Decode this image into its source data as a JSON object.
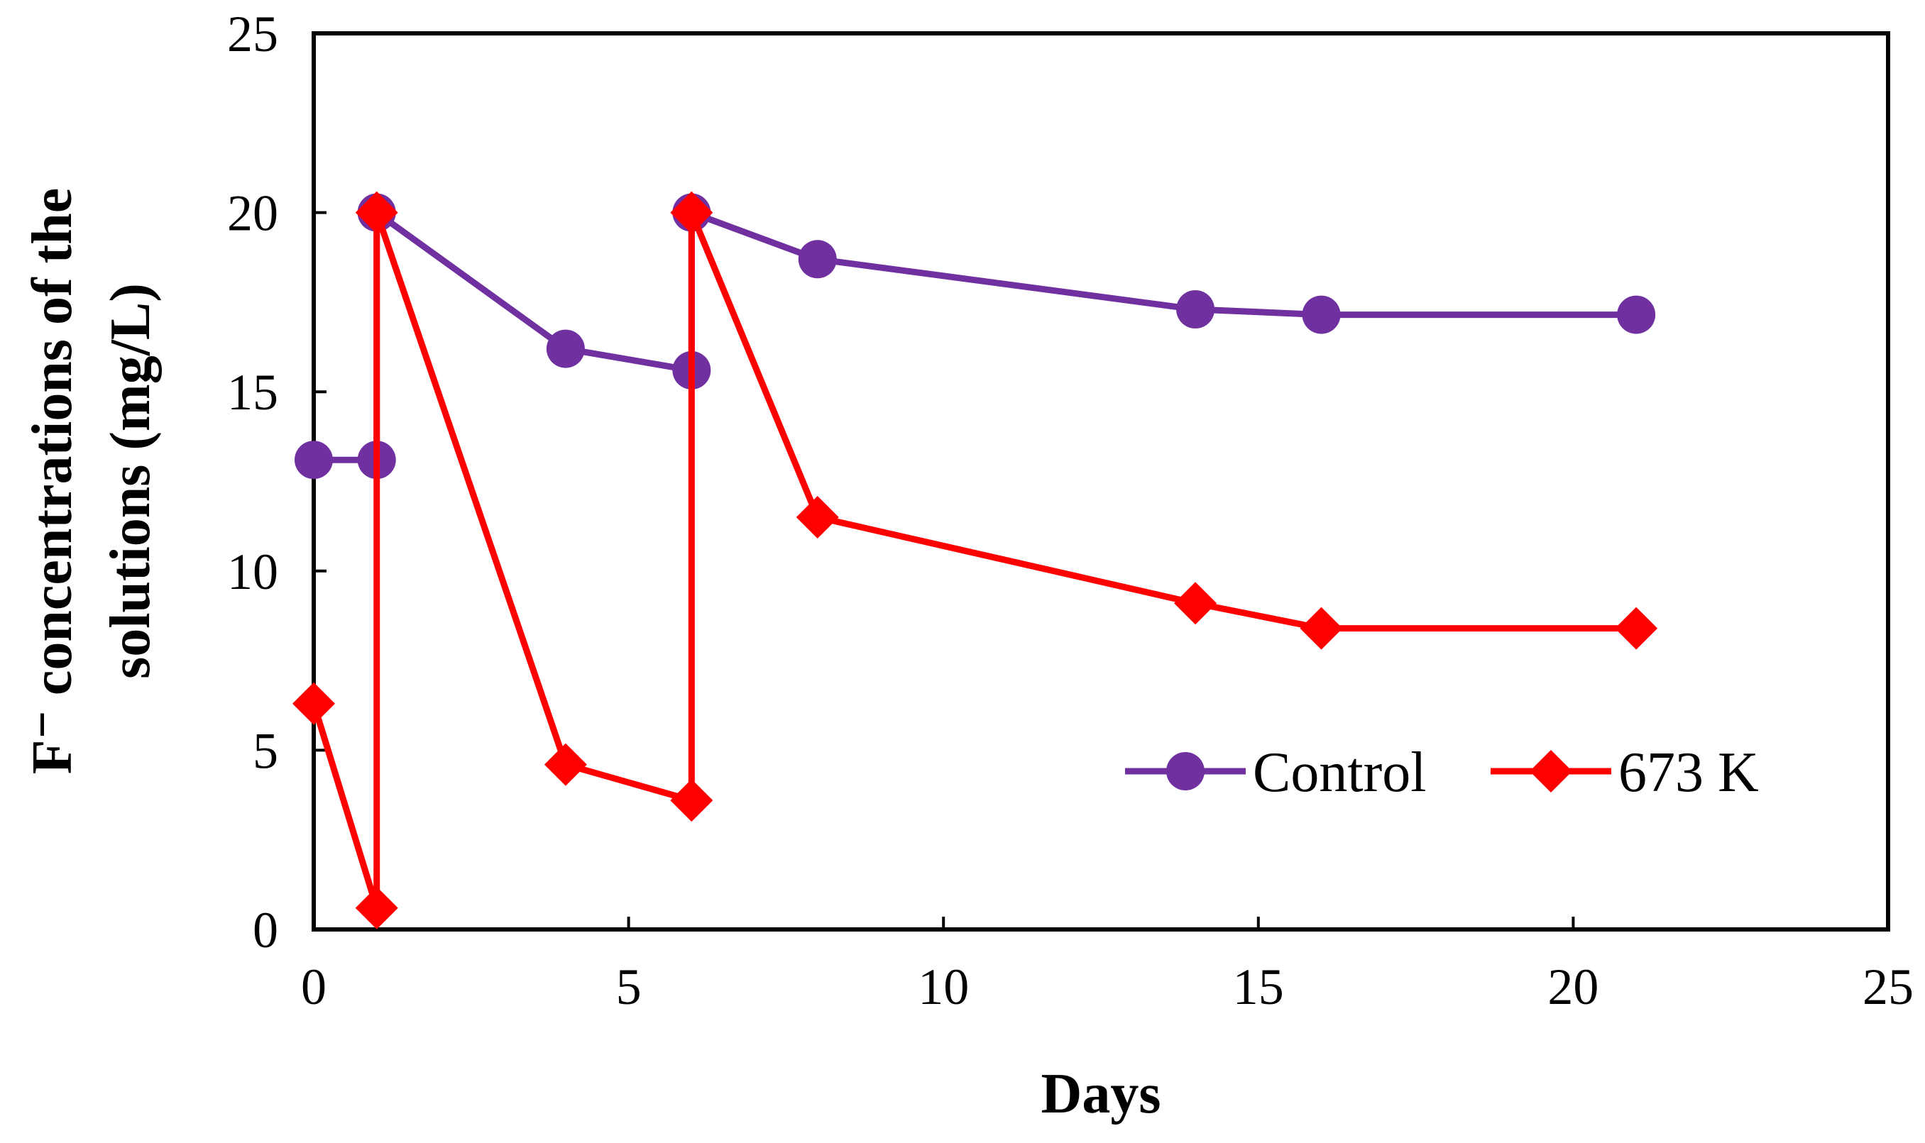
{
  "chart_data": {
    "type": "line",
    "title": "",
    "xlabel": "Days",
    "ylabel_line1": "F⁻ concentrations of the",
    "ylabel_line2": "solutions (mg/L)",
    "xlim": [
      0,
      25
    ],
    "ylim": [
      0,
      25
    ],
    "xticks": [
      0,
      5,
      10,
      15,
      20,
      25
    ],
    "yticks": [
      0,
      5,
      10,
      15,
      20,
      25
    ],
    "grid": false,
    "legend_position": "bottom-right",
    "series": [
      {
        "name": "Control",
        "color": "#7030A0",
        "marker": "circle",
        "x": [
          0,
          1,
          1,
          4,
          6,
          6,
          8,
          14,
          16,
          21
        ],
        "y": [
          13.1,
          13.1,
          20.0,
          16.2,
          15.6,
          20.0,
          18.7,
          17.3,
          17.15,
          17.15
        ]
      },
      {
        "name": "673 K",
        "color": "#FF0000",
        "marker": "diamond",
        "x": [
          0,
          1,
          1,
          4,
          6,
          6,
          8,
          14,
          16,
          21
        ],
        "y": [
          6.3,
          0.6,
          20.0,
          4.6,
          3.6,
          20.0,
          11.5,
          9.1,
          8.4,
          8.4
        ]
      }
    ]
  }
}
